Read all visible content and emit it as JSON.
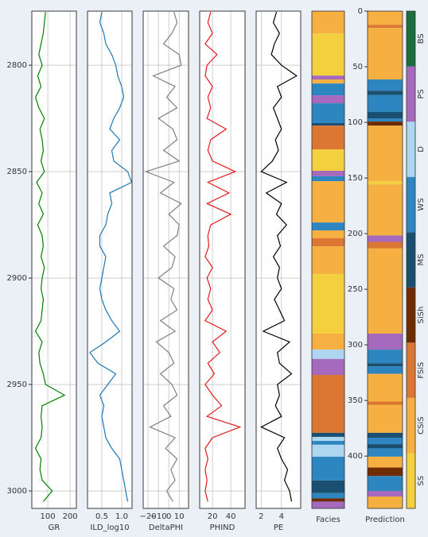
{
  "chart_data": {
    "type": "well-log",
    "depth": [
      2775,
      2780,
      2785,
      2790,
      2795,
      2800,
      2805,
      2810,
      2815,
      2820,
      2825,
      2830,
      2835,
      2840,
      2845,
      2850,
      2855,
      2860,
      2865,
      2870,
      2875,
      2880,
      2885,
      2890,
      2895,
      2900,
      2905,
      2910,
      2915,
      2920,
      2925,
      2930,
      2935,
      2940,
      2945,
      2950,
      2955,
      2960,
      2965,
      2970,
      2975,
      2980,
      2985,
      2990,
      2995,
      3000,
      3005
    ],
    "ylim": [
      2774.6,
      3008.2
    ],
    "yticks": [
      2800,
      2850,
      2900,
      2950,
      3000
    ],
    "grid": true,
    "tracks": [
      {
        "name": "GR",
        "color": "#008000",
        "xlim": [
          28.6,
          228
        ],
        "xticks": [
          100,
          200
        ],
        "values": [
          90,
          85,
          80,
          70,
          60,
          75,
          55,
          70,
          45,
          60,
          85,
          65,
          75,
          80,
          70,
          85,
          50,
          75,
          60,
          80,
          55,
          75,
          80,
          70,
          85,
          75,
          70,
          80,
          75,
          70,
          45,
          75,
          60,
          65,
          80,
          90,
          175,
          75,
          70,
          75,
          70,
          45,
          70,
          65,
          75,
          120,
          80
        ]
      },
      {
        "name": "ILD_log10",
        "color": "#1f77b4",
        "xlim": [
          0.14,
          1.26
        ],
        "xticks": [
          0.5,
          {
            "value": 1,
            "label": "1.0"
          }
        ],
        "values": [
          0.5,
          0.45,
          0.55,
          0.6,
          0.75,
          0.85,
          0.9,
          1.0,
          1.05,
          0.95,
          0.8,
          0.7,
          0.95,
          0.75,
          0.8,
          1.15,
          1.25,
          0.7,
          0.75,
          0.65,
          0.6,
          0.45,
          0.45,
          0.6,
          0.55,
          0.5,
          0.45,
          0.5,
          0.6,
          0.75,
          0.95,
          0.6,
          0.2,
          0.4,
          0.85,
          0.65,
          0.45,
          0.55,
          0.5,
          0.55,
          0.6,
          0.75,
          0.95,
          1.0,
          1.05,
          1.1,
          1.15
        ]
      },
      {
        "name": "DeltaPHI",
        "color": "#808080",
        "xlim": [
          -24.6,
          19
        ],
        "xticks": [
          {
            "value": -20,
            "label": "−20"
          },
          {
            "value": -10,
            "label": "−10"
          },
          0,
          10
        ],
        "values": [
          5,
          8,
          3,
          -5,
          10,
          12,
          -15,
          6,
          -2,
          8,
          -10,
          4,
          8,
          -5,
          10,
          -22,
          5,
          -8,
          12,
          0,
          10,
          8,
          -5,
          6,
          3,
          -10,
          5,
          2,
          8,
          -8,
          6,
          -12,
          0,
          5,
          -8,
          3,
          8,
          -5,
          2,
          -18,
          6,
          -3,
          8,
          2,
          6,
          -2,
          4
        ]
      },
      {
        "name": "PHIND",
        "color": "#e41a1c",
        "xlim": [
          6,
          55.6
        ],
        "xticks": [
          20,
          40
        ],
        "values": [
          18,
          15,
          20,
          12,
          25,
          14,
          12,
          20,
          15,
          18,
          14,
          35,
          18,
          15,
          20,
          45,
          15,
          38,
          14,
          40,
          18,
          15,
          16,
          12,
          20,
          14,
          18,
          15,
          20,
          12,
          35,
          20,
          28,
          15,
          22,
          12,
          20,
          30,
          14,
          50,
          20,
          12,
          15,
          12,
          14,
          12,
          15
        ]
      },
      {
        "name": "PE",
        "color": "#000000",
        "xlim": [
          1.5,
          5.9
        ],
        "xticks": [
          2,
          4
        ],
        "values": [
          3.5,
          3.2,
          3.8,
          3.3,
          3.0,
          4.0,
          5.5,
          3.6,
          4.0,
          3.2,
          3.6,
          4.0,
          3.4,
          3.7,
          3.1,
          2.0,
          4.5,
          2.5,
          4.0,
          3.5,
          4.5,
          3.6,
          3.9,
          3.2,
          3.8,
          3.6,
          4.0,
          3.3,
          3.8,
          4.3,
          2.2,
          4.8,
          3.6,
          3.8,
          5.0,
          3.6,
          3.8,
          3.4,
          4.0,
          2.0,
          4.3,
          3.6,
          4.0,
          4.6,
          4.3,
          4.8,
          5.0
        ]
      }
    ],
    "facies_names": [
      "SS",
      "CSiS",
      "FSiS",
      "SiSh",
      "MS",
      "WS",
      "D",
      "PS",
      "BS"
    ],
    "facies_colors": [
      "#F4D03F",
      "#F5B041",
      "#DC7633",
      "#6E2C00",
      "#1B4F72",
      "#2E86C1",
      "#AED6F1",
      "#A569BD",
      "#196F3D"
    ],
    "facies": {
      "name": "Facies",
      "edges": [
        2774.6,
        2785.1,
        2804.9,
        2806.7,
        2808.6,
        2814.2,
        2817.9,
        2827.2,
        2828.4,
        2839.6,
        2849.6,
        2852.2,
        2854.5,
        2873.9,
        2877.6,
        2881.3,
        2885.1,
        2898.1,
        2926.1,
        2933.6,
        2938.0,
        2945.5,
        2972.7,
        2974.6,
        2976.5,
        2978.3,
        2983.9,
        2995.1,
        3001.0,
        3003.5,
        3005.0,
        3008.2
      ],
      "classes": [
        "CSiS",
        "SS",
        "PS",
        "CSiS",
        "WS",
        "PS",
        "WS",
        "MS",
        "FSiS",
        "SS",
        "PS",
        "WS",
        "CSiS",
        "WS",
        "CSiS",
        "FSiS",
        "CSiS",
        "SS",
        "CSiS",
        "D",
        "PS",
        "FSiS",
        "MS",
        "D",
        "WS",
        "D",
        "WS",
        "MS",
        "WS",
        "SiSh",
        "PS"
      ]
    },
    "prediction": {
      "name": "Prediction",
      "edges": [
        2774.6,
        2781,
        2782.5,
        2806.7,
        2812,
        2814,
        2822,
        2825,
        2826.5,
        2828.4,
        2854.5,
        2856,
        2880,
        2883,
        2886,
        2926.1,
        2933.6,
        2940,
        2941.5,
        2945,
        2958,
        2959.5,
        2972.7,
        2975,
        2978,
        2980,
        2983.9,
        2989,
        2993,
        3000,
        3002.6,
        3008.2
      ],
      "classes": [
        "CSiS",
        "FSiS",
        "CSiS",
        "WS",
        "MS",
        "WS",
        "MS",
        "WS",
        "SiSh",
        "CSiS",
        "SS",
        "CSiS",
        "PS",
        "FSiS",
        "CSiS",
        "PS",
        "WS",
        "MS",
        "WS",
        "CSiS",
        "FSiS",
        "CSiS",
        "MS",
        "WS",
        "MS",
        "WS",
        "CSiS",
        "SiSh",
        "WS",
        "PS",
        "CSiS"
      ],
      "index_lim": [
        0,
        447
      ],
      "index_ticks": [
        0,
        50,
        100,
        150,
        200,
        250,
        300,
        350,
        400
      ]
    }
  }
}
